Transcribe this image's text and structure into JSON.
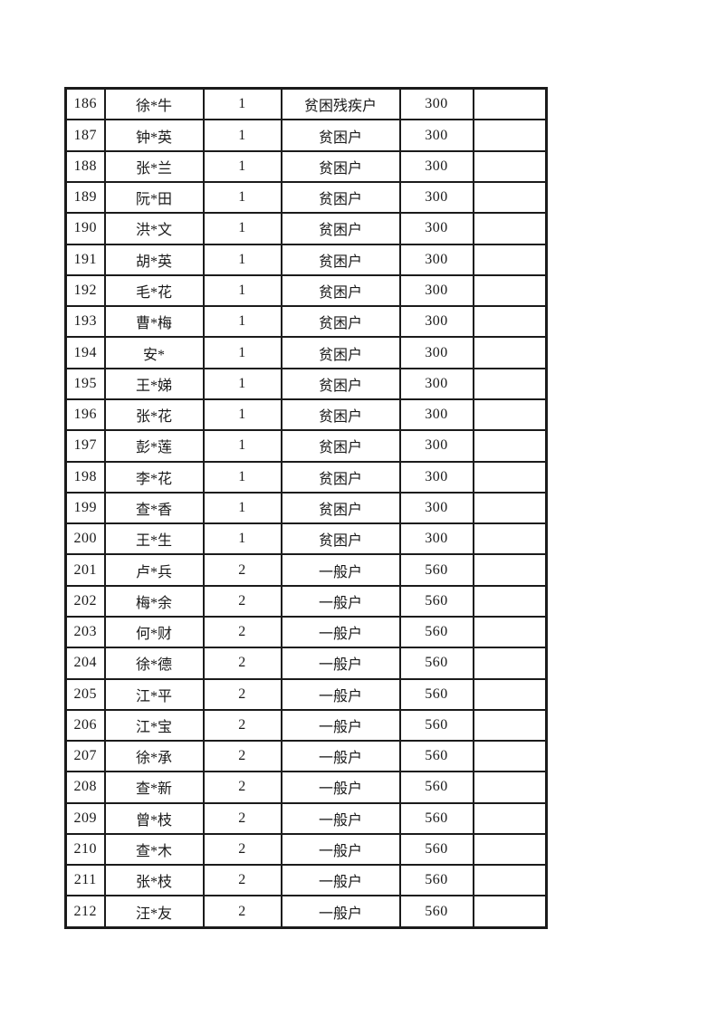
{
  "page": {
    "background_color": "#ffffff",
    "text_color": "#1a1a1a",
    "border_color": "#1b1b1b"
  },
  "table": {
    "rows": [
      {
        "no": "186",
        "name": "徐*牛",
        "count": "1",
        "household_type": "贫困残疾户",
        "amount": "300",
        "note": ""
      },
      {
        "no": "187",
        "name": "钟*英",
        "count": "1",
        "household_type": "贫困户",
        "amount": "300",
        "note": ""
      },
      {
        "no": "188",
        "name": "张*兰",
        "count": "1",
        "household_type": "贫困户",
        "amount": "300",
        "note": ""
      },
      {
        "no": "189",
        "name": "阮*田",
        "count": "1",
        "household_type": "贫困户",
        "amount": "300",
        "note": ""
      },
      {
        "no": "190",
        "name": "洪*文",
        "count": "1",
        "household_type": "贫困户",
        "amount": "300",
        "note": ""
      },
      {
        "no": "191",
        "name": "胡*英",
        "count": "1",
        "household_type": "贫困户",
        "amount": "300",
        "note": ""
      },
      {
        "no": "192",
        "name": "毛*花",
        "count": "1",
        "household_type": "贫困户",
        "amount": "300",
        "note": ""
      },
      {
        "no": "193",
        "name": "曹*梅",
        "count": "1",
        "household_type": "贫困户",
        "amount": "300",
        "note": ""
      },
      {
        "no": "194",
        "name": "安*",
        "count": "1",
        "household_type": "贫困户",
        "amount": "300",
        "note": ""
      },
      {
        "no": "195",
        "name": "王*娣",
        "count": "1",
        "household_type": "贫困户",
        "amount": "300",
        "note": ""
      },
      {
        "no": "196",
        "name": "张*花",
        "count": "1",
        "household_type": "贫困户",
        "amount": "300",
        "note": ""
      },
      {
        "no": "197",
        "name": "彭*莲",
        "count": "1",
        "household_type": "贫困户",
        "amount": "300",
        "note": ""
      },
      {
        "no": "198",
        "name": "李*花",
        "count": "1",
        "household_type": "贫困户",
        "amount": "300",
        "note": ""
      },
      {
        "no": "199",
        "name": "查*香",
        "count": "1",
        "household_type": "贫困户",
        "amount": "300",
        "note": ""
      },
      {
        "no": "200",
        "name": "王*生",
        "count": "1",
        "household_type": "贫困户",
        "amount": "300",
        "note": ""
      },
      {
        "no": "201",
        "name": "卢*兵",
        "count": "2",
        "household_type": "一般户",
        "amount": "560",
        "note": ""
      },
      {
        "no": "202",
        "name": "梅*余",
        "count": "2",
        "household_type": "一般户",
        "amount": "560",
        "note": ""
      },
      {
        "no": "203",
        "name": "何*财",
        "count": "2",
        "household_type": "一般户",
        "amount": "560",
        "note": ""
      },
      {
        "no": "204",
        "name": "徐*德",
        "count": "2",
        "household_type": "一般户",
        "amount": "560",
        "note": ""
      },
      {
        "no": "205",
        "name": "江*平",
        "count": "2",
        "household_type": "一般户",
        "amount": "560",
        "note": ""
      },
      {
        "no": "206",
        "name": "江*宝",
        "count": "2",
        "household_type": "一般户",
        "amount": "560",
        "note": ""
      },
      {
        "no": "207",
        "name": "徐*承",
        "count": "2",
        "household_type": "一般户",
        "amount": "560",
        "note": ""
      },
      {
        "no": "208",
        "name": "查*新",
        "count": "2",
        "household_type": "一般户",
        "amount": "560",
        "note": ""
      },
      {
        "no": "209",
        "name": "曾*枝",
        "count": "2",
        "household_type": "一般户",
        "amount": "560",
        "note": ""
      },
      {
        "no": "210",
        "name": "查*木",
        "count": "2",
        "household_type": "一般户",
        "amount": "560",
        "note": ""
      },
      {
        "no": "211",
        "name": "张*枝",
        "count": "2",
        "household_type": "一般户",
        "amount": "560",
        "note": ""
      },
      {
        "no": "212",
        "name": "汪*友",
        "count": "2",
        "household_type": "一般户",
        "amount": "560",
        "note": ""
      }
    ]
  }
}
